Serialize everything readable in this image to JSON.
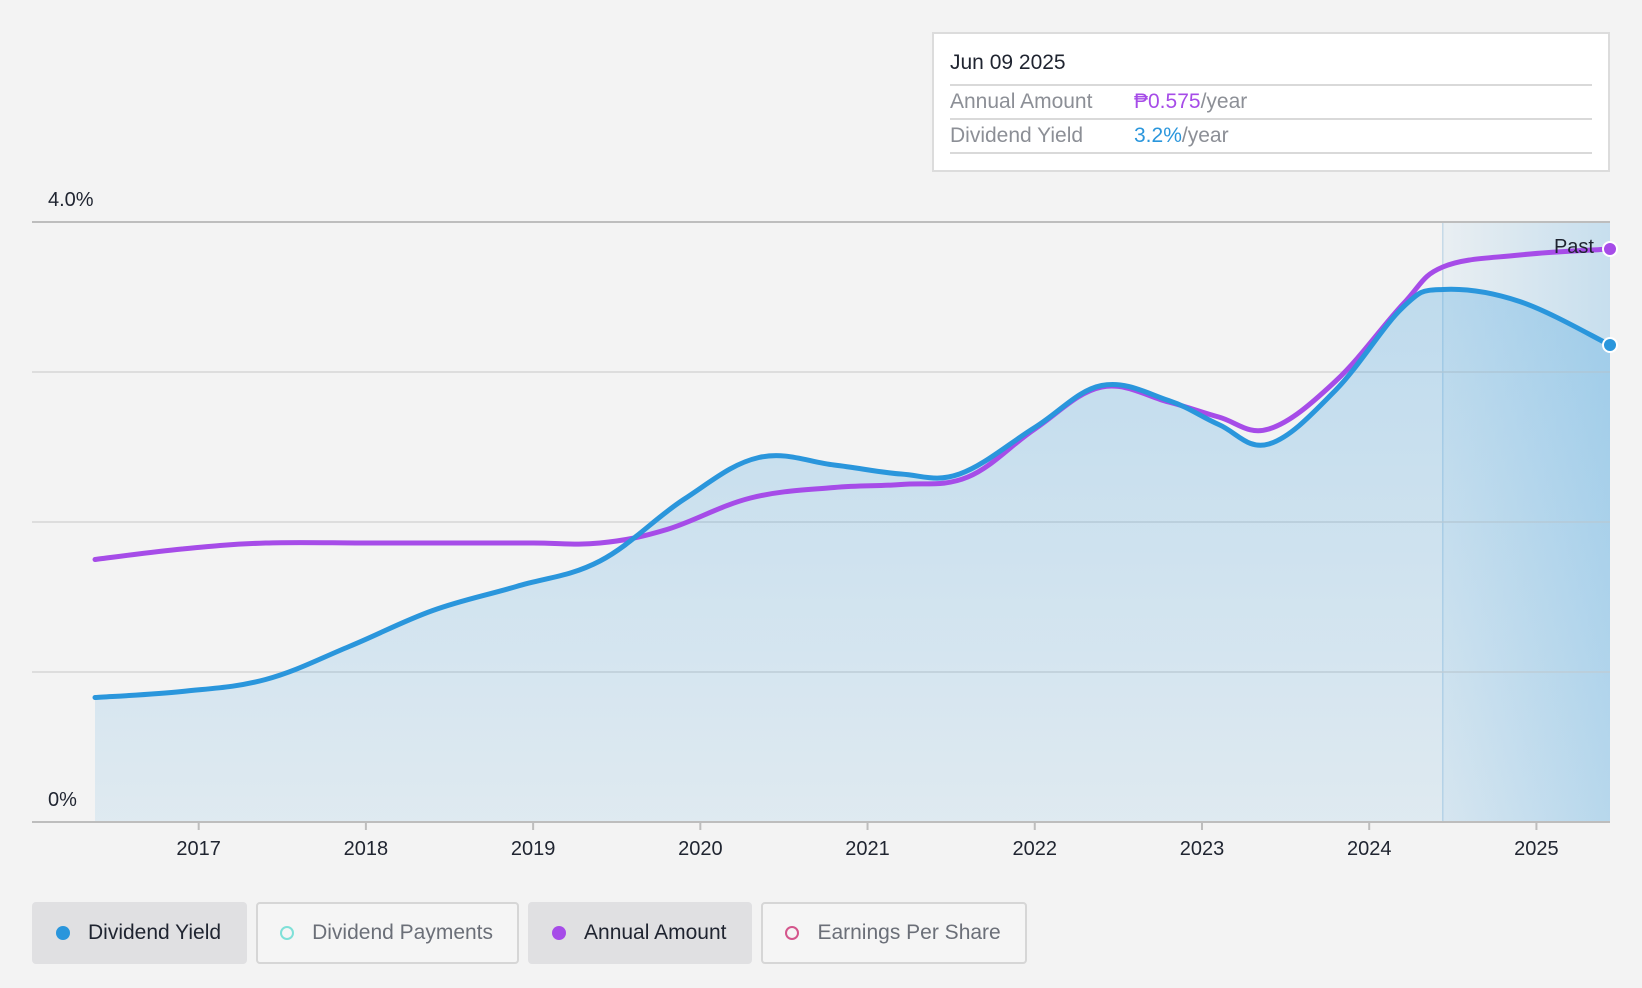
{
  "tooltip": {
    "date": "Jun 09 2025",
    "annual_amount_label": "Annual Amount",
    "annual_amount_value": "₱0.575",
    "annual_amount_unit": "/year",
    "dividend_yield_label": "Dividend Yield",
    "dividend_yield_value": "3.2%",
    "dividend_yield_unit": "/year"
  },
  "past_label": "Past",
  "legend": [
    {
      "label": "Dividend Yield",
      "color": "#2a96dc",
      "active": true,
      "filled": true
    },
    {
      "label": "Dividend Payments",
      "color": "#7fe0d8",
      "active": false,
      "filled": false
    },
    {
      "label": "Annual Amount",
      "color": "#a64ce8",
      "active": true,
      "filled": true
    },
    {
      "label": "Earnings Per Share",
      "color": "#d4568c",
      "active": false,
      "filled": false
    }
  ],
  "colors": {
    "yield": "#2a96dc",
    "amount": "#a64ce8",
    "fill": "#9fcbe9",
    "grid": "#d6d6d6",
    "axis": "#bdbdbd"
  },
  "chart_data": {
    "type": "line",
    "title": "",
    "xlabel": "",
    "ylabel": "",
    "ylim": [
      0,
      4.0
    ],
    "xlim": [
      2016.38,
      2025.44
    ],
    "y_tick_labels": [
      {
        "value": 4.0,
        "label": "4.0%"
      },
      {
        "value": 0,
        "label": "0%"
      }
    ],
    "y_gridlines": [
      1.0,
      2.0,
      3.0,
      4.0
    ],
    "x_ticks": [
      2017,
      2018,
      2019,
      2020,
      2021,
      2022,
      2023,
      2024,
      2025
    ],
    "x_tick_labels": [
      "2017",
      "2018",
      "2019",
      "2020",
      "2021",
      "2022",
      "2023",
      "2024",
      "2025"
    ],
    "past_region_start": 2024.44,
    "series": [
      {
        "name": "Dividend Yield",
        "unit": "%",
        "area_fill": true,
        "points": [
          [
            2016.38,
            0.83
          ],
          [
            2016.9,
            0.87
          ],
          [
            2017.4,
            0.95
          ],
          [
            2017.9,
            1.17
          ],
          [
            2018.4,
            1.41
          ],
          [
            2018.9,
            1.57
          ],
          [
            2019.4,
            1.74
          ],
          [
            2019.9,
            2.15
          ],
          [
            2020.35,
            2.43
          ],
          [
            2020.8,
            2.38
          ],
          [
            2021.2,
            2.32
          ],
          [
            2021.55,
            2.32
          ],
          [
            2022.0,
            2.63
          ],
          [
            2022.4,
            2.91
          ],
          [
            2022.8,
            2.81
          ],
          [
            2023.1,
            2.65
          ],
          [
            2023.4,
            2.52
          ],
          [
            2023.8,
            2.88
          ],
          [
            2024.2,
            3.43
          ],
          [
            2024.44,
            3.55
          ],
          [
            2024.9,
            3.47
          ],
          [
            2025.44,
            3.18
          ]
        ]
      },
      {
        "name": "Annual Amount",
        "unit": "scaled",
        "area_fill": false,
        "points": [
          [
            2016.38,
            1.75
          ],
          [
            2016.9,
            1.82
          ],
          [
            2017.4,
            1.86
          ],
          [
            2018.0,
            1.86
          ],
          [
            2018.5,
            1.86
          ],
          [
            2019.0,
            1.86
          ],
          [
            2019.4,
            1.86
          ],
          [
            2019.8,
            1.95
          ],
          [
            2020.3,
            2.16
          ],
          [
            2020.8,
            2.23
          ],
          [
            2021.2,
            2.25
          ],
          [
            2021.6,
            2.3
          ],
          [
            2022.0,
            2.62
          ],
          [
            2022.4,
            2.9
          ],
          [
            2022.8,
            2.8
          ],
          [
            2023.1,
            2.7
          ],
          [
            2023.4,
            2.62
          ],
          [
            2023.8,
            2.94
          ],
          [
            2024.2,
            3.45
          ],
          [
            2024.44,
            3.7
          ],
          [
            2024.9,
            3.78
          ],
          [
            2025.44,
            3.82
          ]
        ]
      }
    ]
  }
}
